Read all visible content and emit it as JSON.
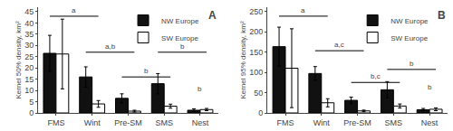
{
  "chart_data": [
    {
      "type": "bar",
      "title": "A",
      "ylabel": "Kernel 50% density, km²",
      "categories": [
        "FMS",
        "Wint",
        "Pre-SM",
        "SMS",
        "Nest"
      ],
      "series": [
        {
          "name": "NW Europe",
          "color": "#111111",
          "values": [
            26.5,
            16.0,
            6.5,
            13.0,
            1.2
          ],
          "errors": [
            8.0,
            4.5,
            2.0,
            4.5,
            0.6
          ]
        },
        {
          "name": "SW Europe",
          "color": "#ffffff",
          "values": [
            26.2,
            4.0,
            0.8,
            3.0,
            1.5
          ],
          "errors": [
            15.5,
            1.5,
            0.4,
            0.9,
            0.5
          ]
        }
      ],
      "color": "#000000",
      "ylim": [
        0,
        47
      ],
      "yticks": [
        0,
        5,
        10,
        15,
        20,
        25,
        30,
        35,
        40,
        45
      ],
      "annotations": [
        {
          "text": "a",
          "x": [
            "FMS",
            "Wint"
          ],
          "y": 43
        },
        {
          "text": "a,b",
          "x": [
            "Wint",
            "Pre-SM"
          ],
          "y": 27
        },
        {
          "text": "b",
          "x": [
            "Pre-SM",
            "SMS"
          ],
          "y": 16
        },
        {
          "text": "b",
          "x": [
            "SMS",
            "Nest"
          ],
          "y": 27
        },
        {
          "text": "b",
          "x": [
            "Nest",
            "Nest"
          ],
          "y": 8
        }
      ],
      "legend": "upper right",
      "grid": false
    },
    {
      "type": "bar",
      "title": "B",
      "ylabel": "Kernel 95% density, km²",
      "categories": [
        "FMS",
        "Wint",
        "Pre-SM",
        "SMS",
        "Nest"
      ],
      "series": [
        {
          "name": "NW Europe",
          "color": "#111111",
          "values": [
            163.0,
            97.0,
            31.0,
            57.0,
            8.0
          ],
          "errors": [
            48.0,
            17.0,
            8.0,
            20.0,
            3.0
          ]
        },
        {
          "name": "SW Europe",
          "color": "#ffffff",
          "values": [
            110.0,
            25.0,
            5.0,
            17.0,
            9.0
          ],
          "errors": [
            97.0,
            10.0,
            2.0,
            5.0,
            3.5
          ]
        }
      ],
      "color": "#000000",
      "ylim": [
        0,
        260
      ],
      "yticks": [
        0,
        50,
        100,
        150,
        200,
        250
      ],
      "annotations": [
        {
          "text": "a",
          "x": [
            "FMS",
            "Wint"
          ],
          "y": 238
        },
        {
          "text": "a,c",
          "x": [
            "Wint",
            "Pre-SM"
          ],
          "y": 153
        },
        {
          "text": "b,c",
          "x": [
            "Pre-SM",
            "SMS"
          ],
          "y": 75
        },
        {
          "text": "b",
          "x": [
            "SMS",
            "Nest"
          ],
          "y": 107
        },
        {
          "text": "b",
          "x": [
            "Nest",
            "Nest"
          ],
          "y": 48
        }
      ],
      "legend": "upper right",
      "grid": false
    }
  ]
}
